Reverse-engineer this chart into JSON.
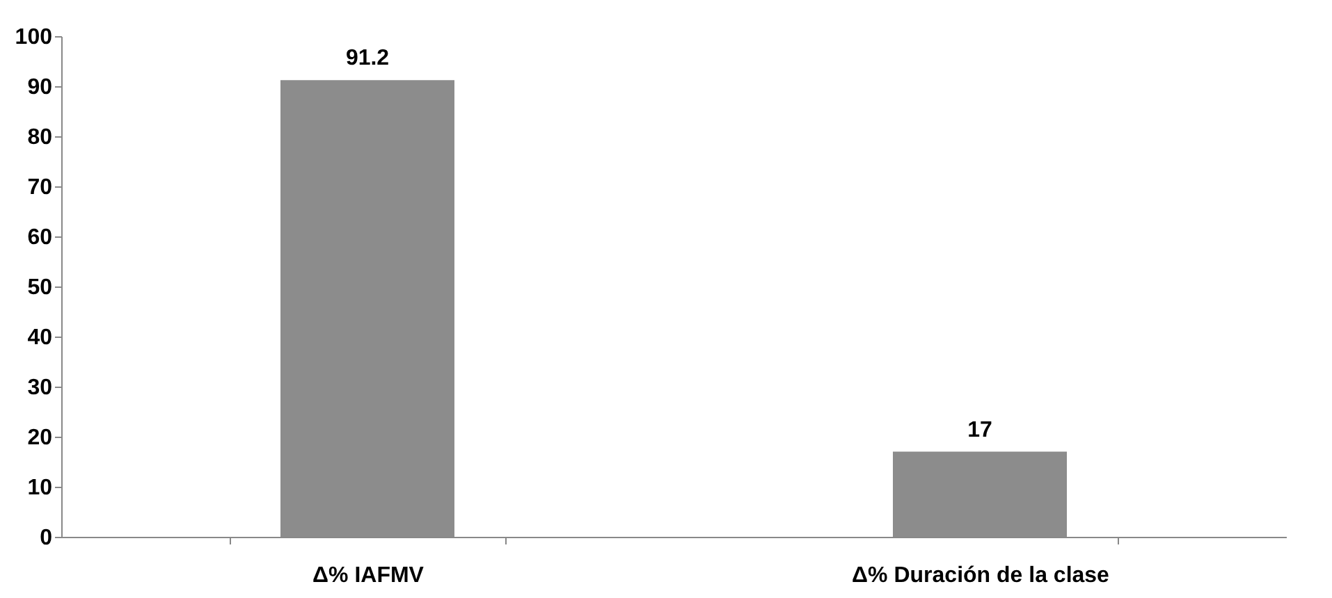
{
  "chart_data": {
    "type": "bar",
    "categories": [
      "Δ% IAFMV",
      "Δ% Duración de la clase"
    ],
    "values": [
      91.2,
      17
    ],
    "color": "#8c8c8c",
    "ylim": [
      0,
      100
    ],
    "yticks": [
      0,
      10,
      20,
      30,
      40,
      50,
      60,
      70,
      80,
      90,
      100
    ],
    "grid": false,
    "data_labels": true
  }
}
